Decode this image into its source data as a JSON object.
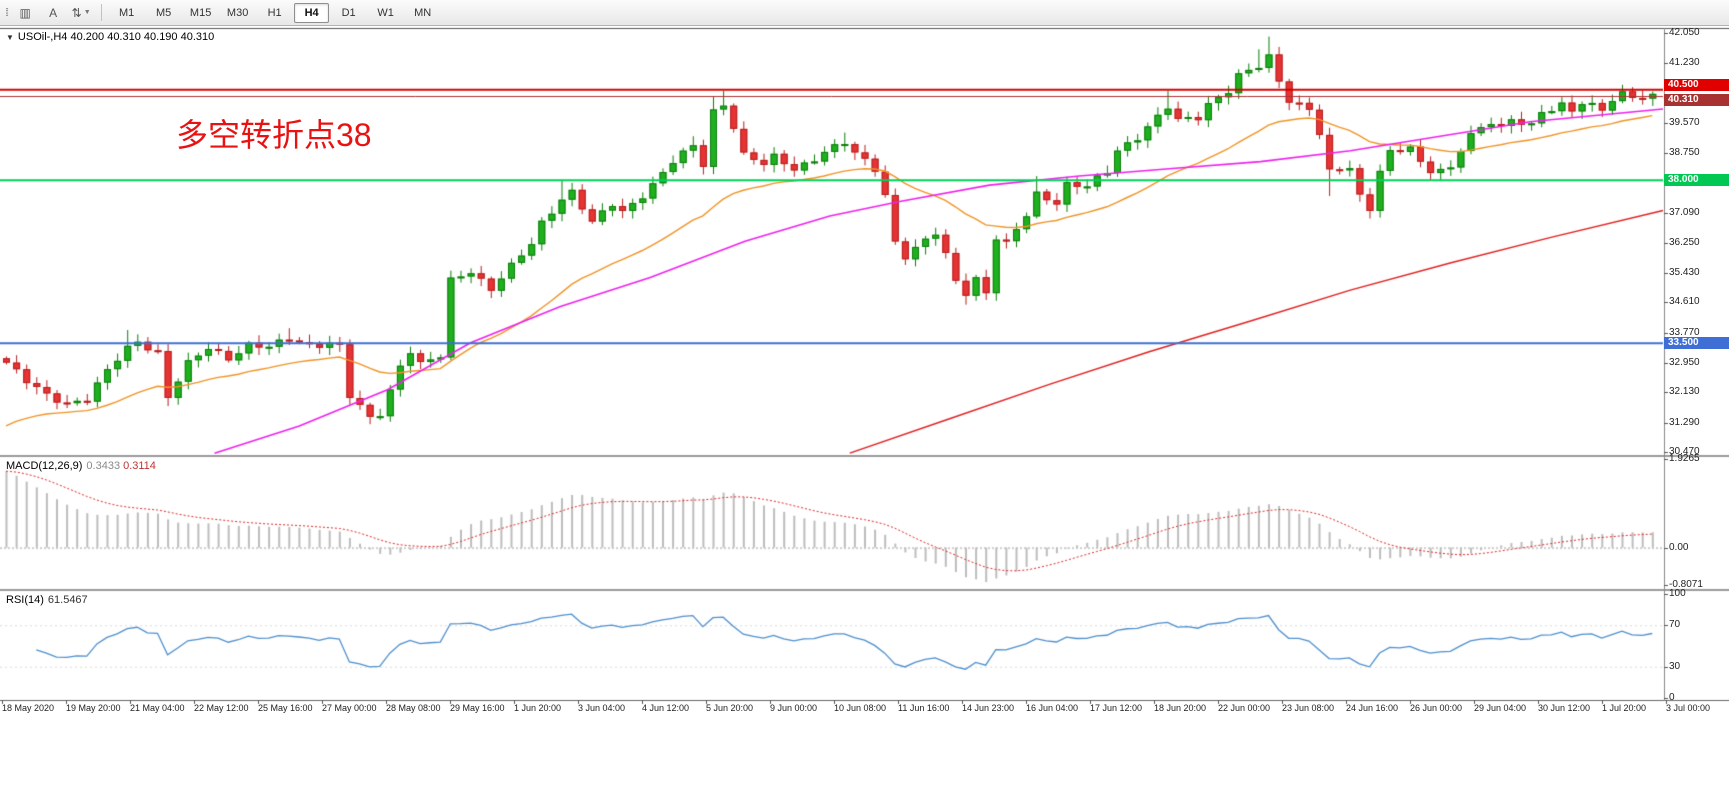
{
  "toolbar": {
    "tools": [
      {
        "name": "chart-bar-icon",
        "glyph": "▥",
        "caret": false
      },
      {
        "name": "text-tool",
        "glyph": "A",
        "caret": false
      },
      {
        "name": "cycle-lines-tool",
        "glyph": "⇅",
        "caret": true
      }
    ],
    "timeframes": [
      "M1",
      "M5",
      "M15",
      "M30",
      "H1",
      "H4",
      "D1",
      "W1",
      "MN"
    ],
    "active_timeframe": "H4"
  },
  "chart": {
    "title_symbol": "USOil-,H4",
    "title_ohlc": "40.200 40.310 40.190 40.310",
    "annotation": {
      "text": "多空转折点38",
      "color": "#e81212"
    },
    "price_axis": {
      "min": 30.4,
      "max": 42.16,
      "labels": [
        "42.050",
        "41.230",
        "39.570",
        "38.750",
        "37.090",
        "36.250",
        "35.430",
        "34.610",
        "33.770",
        "32.950",
        "32.130",
        "31.290",
        "30.470"
      ]
    },
    "hlines": [
      {
        "price": 40.5,
        "label": "40.500",
        "line_color": "#d40000",
        "line_width": 2,
        "box_color": "#e00000",
        "box_dy": -10
      },
      {
        "price": 40.31,
        "label": "40.310",
        "line_color": "#b03030",
        "line_width": 1,
        "box_color": "#a83232",
        "box_dy": -2
      },
      {
        "price": 38.0,
        "label": "38.000",
        "line_color": "#00d25a",
        "line_width": 2,
        "box_color": "#00c853",
        "box_dy": -6
      },
      {
        "price": 33.5,
        "label": "33.500",
        "line_color": "#3f6fd4",
        "line_width": 2,
        "box_color": "#3f6fd4",
        "box_dy": -6
      }
    ],
    "colors": {
      "up_body": "#1fb01f",
      "up_edge": "#0d7d0d",
      "down_body": "#e63333",
      "down_edge": "#b51f1f",
      "ma_fast": "#f09426",
      "ma_mid": "#ee22ee",
      "ma_slow": "#e02020"
    },
    "candles": {
      "count": 164,
      "waypoints": [
        [
          0,
          32.95
        ],
        [
          2,
          32.4
        ],
        [
          4,
          32.05
        ],
        [
          6,
          31.85
        ],
        [
          8,
          31.95
        ],
        [
          10,
          32.7
        ],
        [
          12,
          33.35
        ],
        [
          13,
          33.55
        ],
        [
          15,
          33.25
        ],
        [
          16,
          32.0
        ],
        [
          18,
          32.9
        ],
        [
          20,
          33.35
        ],
        [
          22,
          33.1
        ],
        [
          24,
          33.45
        ],
        [
          26,
          33.35
        ],
        [
          28,
          33.6
        ],
        [
          30,
          33.45
        ],
        [
          32,
          33.5
        ],
        [
          33,
          33.4
        ],
        [
          34,
          32.0
        ],
        [
          36,
          31.4
        ],
        [
          37,
          31.55
        ],
        [
          38,
          32.2
        ],
        [
          39,
          32.9
        ],
        [
          40,
          33.3
        ],
        [
          41,
          32.9
        ],
        [
          43,
          33.1
        ],
        [
          44,
          35.2
        ],
        [
          46,
          35.5
        ],
        [
          48,
          35.0
        ],
        [
          50,
          35.6
        ],
        [
          52,
          36.2
        ],
        [
          53,
          36.8
        ],
        [
          55,
          37.5
        ],
        [
          56,
          37.7
        ],
        [
          58,
          36.8
        ],
        [
          60,
          37.3
        ],
        [
          61,
          37.1
        ],
        [
          63,
          37.6
        ],
        [
          65,
          38.2
        ],
        [
          66,
          38.5
        ],
        [
          68,
          38.9
        ],
        [
          69,
          38.4
        ],
        [
          70,
          39.9
        ],
        [
          71,
          40.1
        ],
        [
          72,
          39.5
        ],
        [
          73,
          38.7
        ],
        [
          75,
          38.4
        ],
        [
          76,
          38.6
        ],
        [
          78,
          38.3
        ],
        [
          80,
          38.6
        ],
        [
          81,
          38.8
        ],
        [
          83,
          39.0
        ],
        [
          84,
          38.7
        ],
        [
          86,
          38.3
        ],
        [
          87,
          37.6
        ],
        [
          88,
          36.3
        ],
        [
          89,
          35.9
        ],
        [
          91,
          36.3
        ],
        [
          92,
          36.5
        ],
        [
          93,
          35.9
        ],
        [
          94,
          35.2
        ],
        [
          95,
          34.9
        ],
        [
          96,
          35.3
        ],
        [
          97,
          34.9
        ],
        [
          98,
          36.4
        ],
        [
          99,
          36.2
        ],
        [
          101,
          37.0
        ],
        [
          102,
          37.6
        ],
        [
          104,
          37.4
        ],
        [
          105,
          37.9
        ],
        [
          107,
          37.8
        ],
        [
          109,
          38.2
        ],
        [
          110,
          38.8
        ],
        [
          112,
          39.2
        ],
        [
          113,
          39.5
        ],
        [
          115,
          40.0
        ],
        [
          116,
          39.6
        ],
        [
          118,
          39.7
        ],
        [
          119,
          40.1
        ],
        [
          121,
          40.5
        ],
        [
          122,
          40.9
        ],
        [
          124,
          41.1
        ],
        [
          125,
          41.35
        ],
        [
          126,
          40.7
        ],
        [
          127,
          40.2
        ],
        [
          129,
          40.0
        ],
        [
          130,
          39.3
        ],
        [
          131,
          38.2
        ],
        [
          133,
          38.3
        ],
        [
          134,
          37.5
        ],
        [
          135,
          37.2
        ],
        [
          136,
          38.3
        ],
        [
          137,
          38.8
        ],
        [
          139,
          38.9
        ],
        [
          140,
          38.4
        ],
        [
          141,
          38.2
        ],
        [
          143,
          38.3
        ],
        [
          144,
          38.9
        ],
        [
          145,
          39.3
        ],
        [
          147,
          39.6
        ],
        [
          148,
          39.4
        ],
        [
          149,
          39.6
        ],
        [
          151,
          39.5
        ],
        [
          152,
          39.9
        ],
        [
          154,
          40.1
        ],
        [
          155,
          39.9
        ],
        [
          156,
          40.1
        ],
        [
          158,
          39.9
        ],
        [
          159,
          40.2
        ],
        [
          160,
          40.4
        ],
        [
          162,
          40.3
        ],
        [
          163,
          40.31
        ]
      ],
      "high_overrides": {
        "12": 33.85,
        "28": 33.9,
        "55": 38.0,
        "68": 39.2,
        "70": 40.3,
        "71": 40.45,
        "83": 39.3,
        "102": 38.1,
        "115": 40.45,
        "124": 41.6,
        "125": 41.95,
        "160": 40.62
      },
      "low_overrides": {
        "16": 31.75,
        "36": 31.25,
        "95": 34.55,
        "131": 37.55,
        "135": 36.95
      }
    },
    "ma_mid_points": [
      [
        0.129,
        30.45
      ],
      [
        0.18,
        31.2
      ],
      [
        0.233,
        32.2
      ],
      [
        0.283,
        33.5
      ],
      [
        0.337,
        34.5
      ],
      [
        0.391,
        35.3
      ],
      [
        0.448,
        36.3
      ],
      [
        0.499,
        37.0
      ],
      [
        0.541,
        37.4
      ],
      [
        0.595,
        37.85
      ],
      [
        0.649,
        38.1
      ],
      [
        0.703,
        38.3
      ],
      [
        0.758,
        38.5
      ],
      [
        0.812,
        38.8
      ],
      [
        0.866,
        39.2
      ],
      [
        0.92,
        39.6
      ],
      [
        1.0,
        39.95
      ]
    ],
    "ma_slow_points": [
      [
        0.511,
        30.45
      ],
      [
        0.571,
        31.4
      ],
      [
        0.631,
        32.35
      ],
      [
        0.691,
        33.25
      ],
      [
        0.752,
        34.1
      ],
      [
        0.812,
        34.95
      ],
      [
        0.872,
        35.7
      ],
      [
        0.932,
        36.4
      ],
      [
        1.0,
        37.15
      ]
    ]
  },
  "macd": {
    "name": "MACD(12,26,9)",
    "value_main": "0.3433",
    "value_signal": "0.3114",
    "axis_labels": [
      "1.9265",
      "0.00",
      "-0.8071"
    ],
    "hist_color": "#bdbdbd",
    "signal_color": "#dd2a2a"
  },
  "rsi": {
    "name": "RSI(14)",
    "value": "61.5467",
    "axis_labels": [
      "100",
      "70",
      "30",
      "0"
    ],
    "levels": [
      70,
      30
    ],
    "line_color": "#4f8fce"
  },
  "time_axis": {
    "labels": [
      "18 May 2020",
      "19 May 20:00",
      "21 May 04:00",
      "22 May 12:00",
      "25 May 16:00",
      "27 May 00:00",
      "28 May 08:00",
      "29 May 16:00",
      "1 Jun 20:00",
      "3 Jun 04:00",
      "4 Jun 12:00",
      "5 Jun 20:00",
      "9 Jun 00:00",
      "10 Jun 08:00",
      "11 Jun 16:00",
      "14 Jun 23:00",
      "16 Jun 04:00",
      "17 Jun 12:00",
      "18 Jun 20:00",
      "22 Jun 00:00",
      "23 Jun 08:00",
      "24 Jun 16:00",
      "26 Jun 00:00",
      "29 Jun 04:00",
      "30 Jun 12:00",
      "1 Jul 20:00",
      "3 Jul 00:00"
    ]
  }
}
